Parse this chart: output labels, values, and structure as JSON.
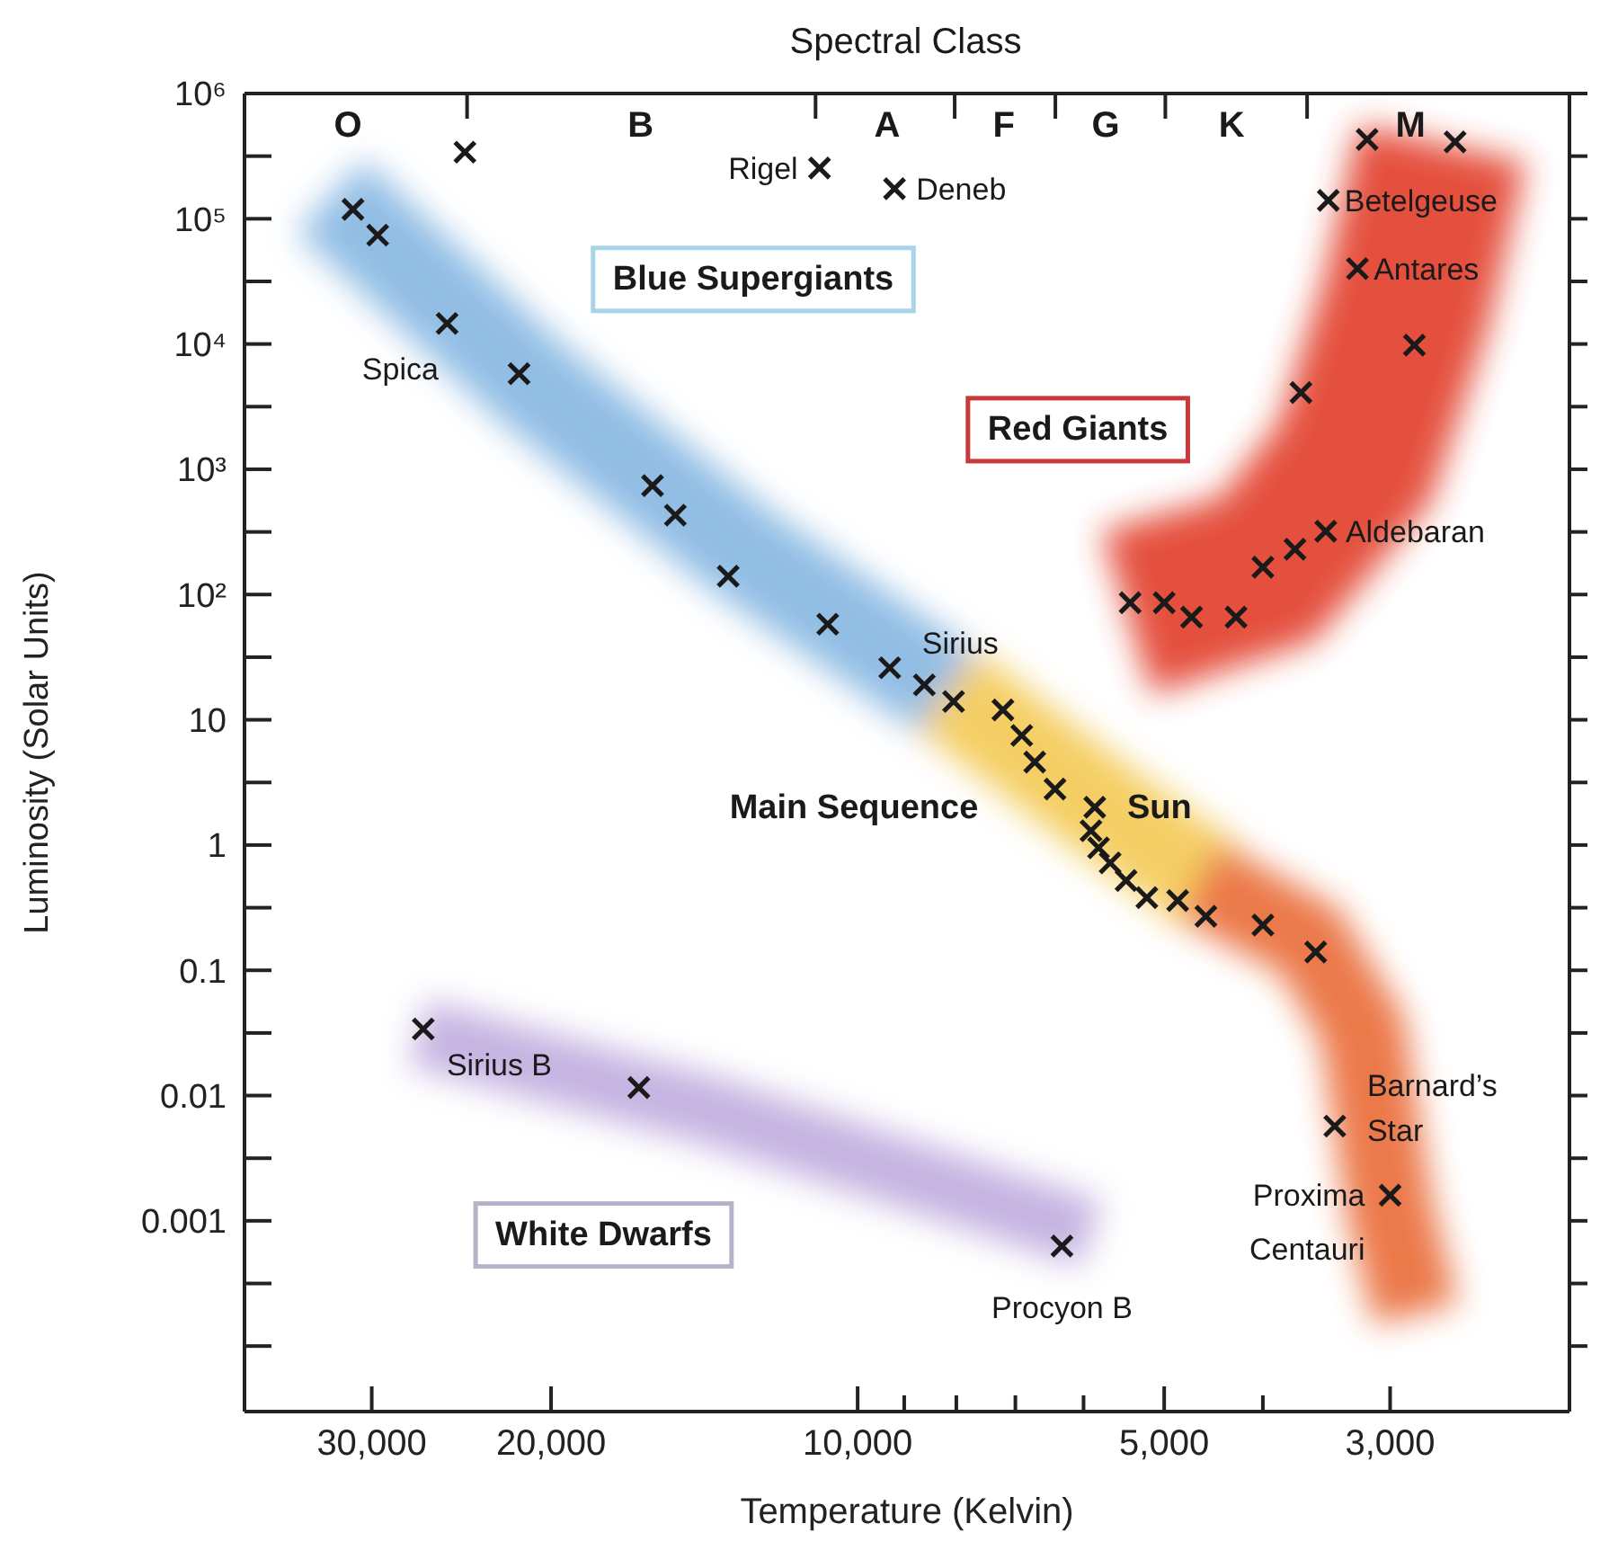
{
  "chart_data": {
    "type": "scatter",
    "xlabel": "Temperature (Kelvin)",
    "ylabel": "Luminosity (Solar Units)",
    "log": "xy",
    "marker": "cross",
    "xlim": [
      40000,
      2000
    ],
    "xticks": [
      {
        "value": 30000,
        "label": "30,000"
      },
      {
        "value": 20000,
        "label": "20,000"
      },
      {
        "value": 10000,
        "label": "10,000"
      },
      {
        "value": 9000,
        "label": null
      },
      {
        "value": 8000,
        "label": null
      },
      {
        "value": 7000,
        "label": null
      },
      {
        "value": 6000,
        "label": null
      },
      {
        "value": 5000,
        "label": "5,000"
      },
      {
        "value": 4000,
        "label": null
      },
      {
        "value": 3000,
        "label": "3,000"
      }
    ],
    "ylim": [
      3e-05,
      1000000
    ],
    "yticks": [
      {
        "value": 1000000,
        "label": "10⁶"
      },
      {
        "value": 316228,
        "label": null
      },
      {
        "value": 100000,
        "label": "10⁵"
      },
      {
        "value": 31623,
        "label": null
      },
      {
        "value": 10000,
        "label": "10⁴"
      },
      {
        "value": 3162,
        "label": null
      },
      {
        "value": 1000,
        "label": "10³"
      },
      {
        "value": 316,
        "label": null
      },
      {
        "value": 100,
        "label": "10²"
      },
      {
        "value": 31.6,
        "label": null
      },
      10,
      {
        "value": 3.16,
        "label": null
      },
      1,
      {
        "value": 0.316,
        "label": null
      },
      0.1,
      {
        "value": 0.0316,
        "label": null
      },
      0.01,
      {
        "value": 0.00316,
        "label": null
      },
      0.001,
      {
        "value": 0.000316,
        "label": null
      },
      {
        "value": 0.0001,
        "label": null
      }
    ],
    "x": [
      24300,
      31300,
      29600,
      25300,
      21500,
      15900,
      15100,
      13400,
      10700,
      9300,
      8600,
      8050,
      10900,
      9200,
      3160,
      2590,
      3450,
      3230,
      2840,
      3670,
      3470,
      3720,
      4000,
      5400,
      5000,
      4700,
      4250,
      7200,
      6900,
      6700,
      6400,
      5850,
      5900,
      5800,
      5650,
      5450,
      5200,
      4850,
      4550,
      4000,
      3550,
      3400,
      3000,
      6300,
      26700,
      16400
    ],
    "series": [
      {
        "color": "#1a1a1a",
        "values": [
          340000,
          119000,
          74000,
          14600,
          5800,
          740,
          430,
          140,
          58,
          26,
          19,
          14,
          254000,
          174000,
          430000,
          410000,
          140000,
          40000,
          9800,
          4100,
          320,
          230,
          165,
          86,
          86,
          66,
          66,
          12,
          7.5,
          4.6,
          2.8,
          2,
          1.3,
          0.95,
          0.72,
          0.52,
          0.38,
          0.36,
          0.27,
          0.23,
          0.14,
          0.0057,
          0.0016,
          0.00063,
          0.034,
          0.0116
        ]
      }
    ],
    "annotations": [
      {
        "text": "Rigel",
        "x": 10900,
        "y": 254000
      },
      {
        "text": "Deneb",
        "x": 9200,
        "y": 174000
      },
      {
        "text": "Spica",
        "x": 25300,
        "y": 14600
      },
      {
        "text": "Sirius",
        "x": 9300,
        "y": 26
      },
      {
        "text": "Sun",
        "x": 5850,
        "y": 2
      },
      {
        "text": "Betelgeuse",
        "x": 3450,
        "y": 140000
      },
      {
        "text": "Antares",
        "x": 3230,
        "y": 40000
      },
      {
        "text": "Aldebaran",
        "x": 3470,
        "y": 320
      },
      {
        "text": "Barnard’s Star",
        "x": 3400,
        "y": 0.0057
      },
      {
        "text": "Proxima Centauri",
        "x": 3000,
        "y": 0.0016
      },
      {
        "text": "Procyon B",
        "x": 6300,
        "y": 0.00063
      },
      {
        "text": "Sirius B",
        "x": 26700,
        "y": 0.034
      },
      "Blue Supergiants",
      "Red Giants",
      "Main Sequence",
      "White Dwarfs",
      "Spectral Class",
      "O",
      "B",
      "A",
      "F",
      "G",
      "K",
      "M"
    ]
  }
}
